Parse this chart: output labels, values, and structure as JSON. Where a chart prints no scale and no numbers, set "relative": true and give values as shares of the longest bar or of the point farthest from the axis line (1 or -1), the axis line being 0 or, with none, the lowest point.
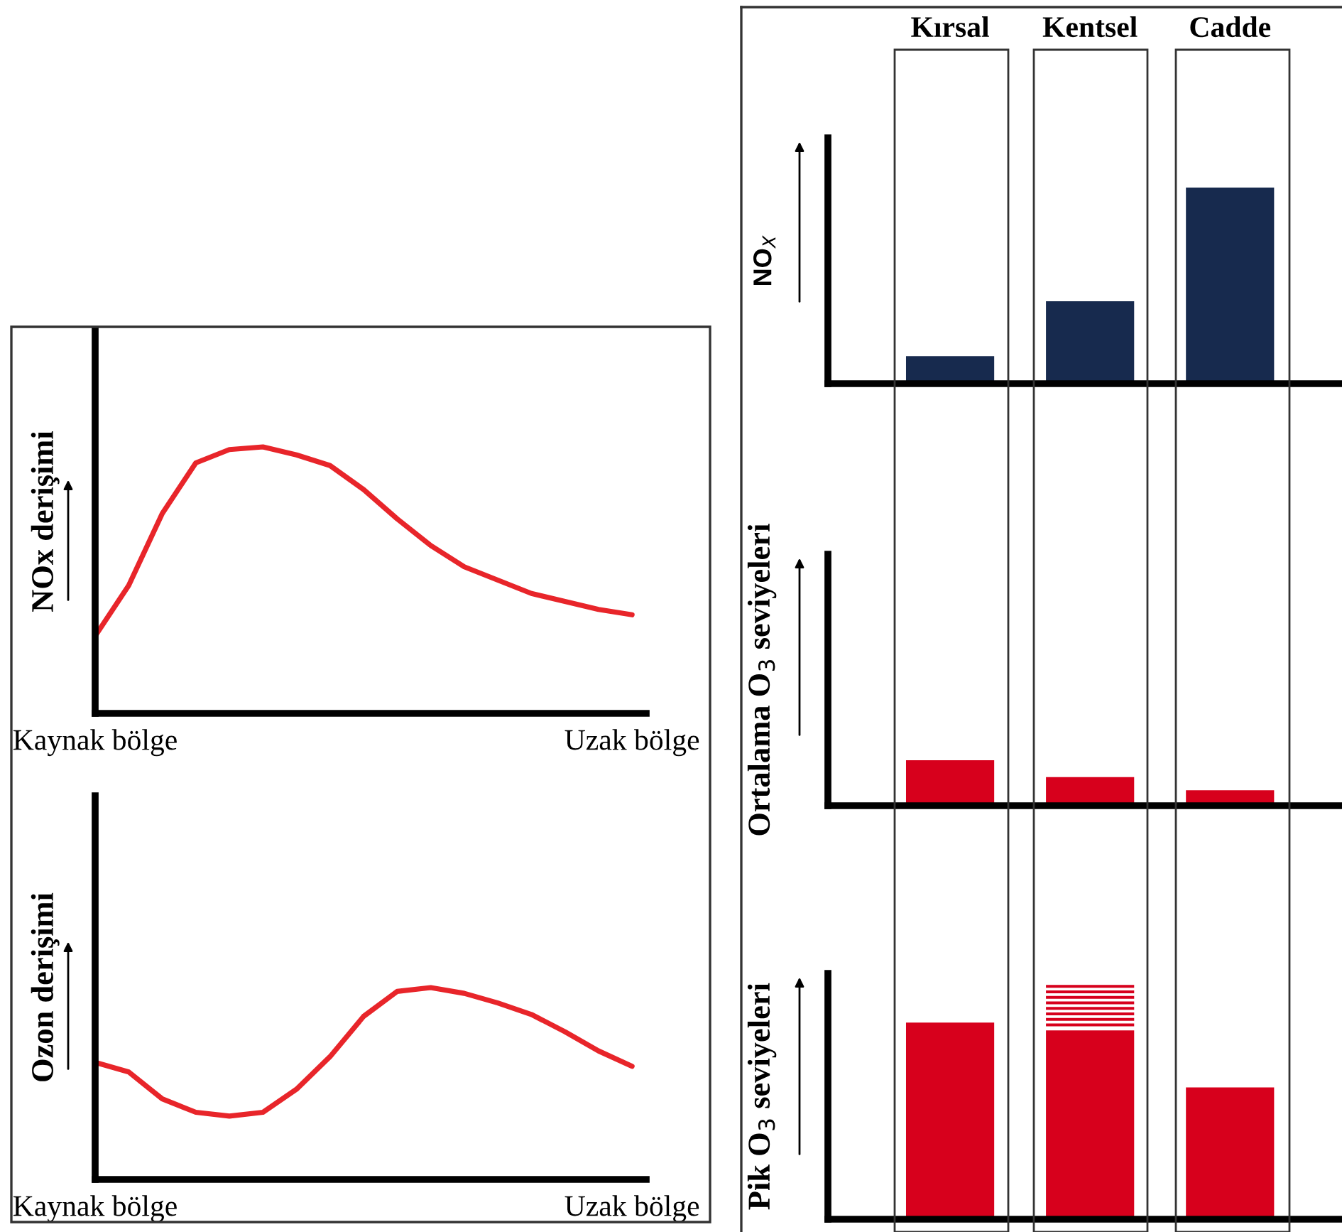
{
  "chart_data": [
    {
      "type": "line",
      "relative": true,
      "ylabel": "NOx derişimi",
      "categories": [
        "Kaynak bölge",
        null,
        null,
        null,
        null,
        null,
        null,
        null,
        null,
        null,
        null,
        null,
        null,
        null,
        null,
        null,
        "Uzak bölge"
      ],
      "series": [
        {
          "color": "#e8252a",
          "values": [
            0.29,
            0.48,
            0.75,
            0.94,
            0.99,
            1,
            0.97,
            0.93,
            0.84,
            0.73,
            0.63,
            0.55,
            0.5,
            0.45,
            0.42,
            0.39,
            0.37
          ]
        }
      ]
    },
    {
      "type": "line",
      "relative": true,
      "ylabel": "Ozon derişimi",
      "categories": [
        "Kaynak bölge",
        null,
        null,
        null,
        null,
        null,
        null,
        null,
        null,
        null,
        null,
        null,
        null,
        null,
        null,
        null,
        "Uzak bölge"
      ],
      "series": [
        {
          "color": "#e8252a",
          "values": [
            0.61,
            0.56,
            0.42,
            0.35,
            0.33,
            0.35,
            0.47,
            0.64,
            0.85,
            0.98,
            1,
            0.97,
            0.92,
            0.86,
            0.77,
            0.67,
            0.59
          ]
        }
      ]
    },
    {
      "type": "bar",
      "relative": true,
      "ylabel": "NO$_{X}$",
      "categories": [
        "Kırsal",
        "Kentsel",
        "Cadde"
      ],
      "tick_labels": "x",
      "color": "#172a4e",
      "values": [
        0.14,
        0.42,
        1
      ]
    },
    {
      "type": "bar",
      "relative": true,
      "ylabel": "Ortalama O$_{3}$ seviyeleri",
      "color": "#d7001c",
      "values": [
        1,
        0.63,
        0.34
      ]
    },
    {
      "type": "bar",
      "relative": true,
      "ylabel": "Pik O$_{3}$ seviyeleri",
      "color": "#d7001c",
      "values": [
        1,
        0.96,
        0.67
      ]
    }
  ]
}
